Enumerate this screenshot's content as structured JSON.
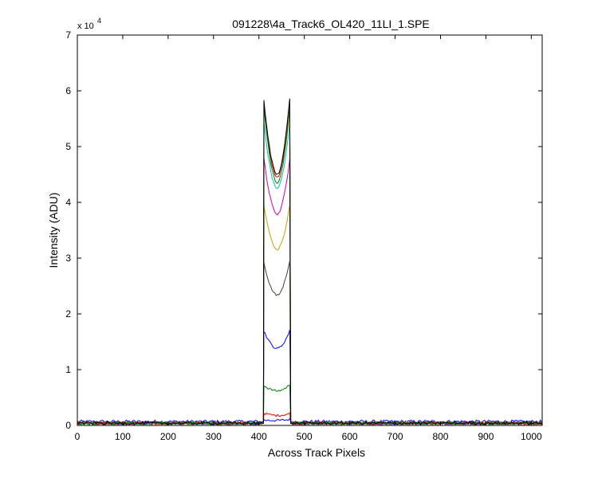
{
  "chart_data": {
    "type": "line",
    "title": "091228\\4a_Track6_OL420_11LI_1.SPE",
    "xlabel": "Across Track Pixels",
    "ylabel": "Intensity (ADU)",
    "y_multiplier_label": "x 10",
    "y_multiplier_exponent": "4",
    "xlim": [
      0,
      1024
    ],
    "ylim": [
      0,
      70000
    ],
    "xticks": [
      0,
      100,
      200,
      300,
      400,
      500,
      600,
      700,
      800,
      900,
      1000
    ],
    "yticks": [
      0,
      1,
      2,
      3,
      4,
      5,
      6,
      7
    ],
    "ytick_scale": 10000,
    "grid": false,
    "x_segment": [
      410,
      470
    ],
    "series": [
      {
        "color": "#0000ff",
        "baseline": 700,
        "edge_left": 950,
        "edge_right": 1100,
        "dip": 900
      },
      {
        "color": "#ff0000",
        "baseline": 400,
        "edge_left": 2200,
        "edge_right": 2200,
        "dip": 1800
      },
      {
        "color": "#008000",
        "baseline": 400,
        "edge_left": 7200,
        "edge_right": 7400,
        "dip": 6200
      },
      {
        "color": "#0000ff",
        "baseline": 400,
        "edge_left": 17200,
        "edge_right": 17400,
        "dip": 13800
      },
      {
        "color": "#404040",
        "baseline": 400,
        "edge_left": 29500,
        "edge_right": 30500,
        "dip": 23300
      },
      {
        "color": "#c8a000",
        "baseline": 400,
        "edge_left": 40000,
        "edge_right": 40500,
        "dip": 31500
      },
      {
        "color": "#c000c0",
        "baseline": 400,
        "edge_left": 48500,
        "edge_right": 49000,
        "dip": 37800
      },
      {
        "color": "#00c0c0",
        "baseline": 400,
        "edge_left": 55000,
        "edge_right": 55500,
        "dip": 42500
      },
      {
        "color": "#ff0000",
        "baseline": 400,
        "edge_left": 58500,
        "edge_right": 59000,
        "dip": 44500
      },
      {
        "color": "#008000",
        "baseline": 400,
        "edge_left": 58000,
        "edge_right": 58500,
        "dip": 43500
      },
      {
        "color": "#000000",
        "baseline": 400,
        "edge_left": 59000,
        "edge_right": 60500,
        "dip": 45000
      }
    ]
  }
}
